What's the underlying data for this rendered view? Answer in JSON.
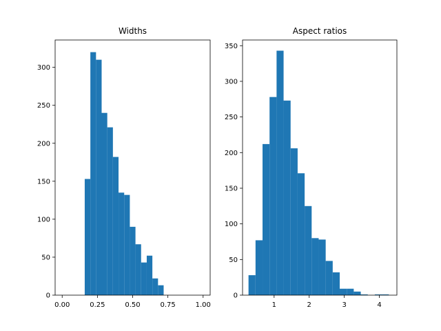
{
  "chart_data": [
    {
      "type": "bar",
      "title": "Widths",
      "bar_color": "#1f77b4",
      "xlim": [
        -0.05,
        1.05
      ],
      "ylim": [
        0,
        336
      ],
      "bin_width": 0.04,
      "bins": [
        {
          "x0": 0.16,
          "value": 153
        },
        {
          "x0": 0.2,
          "value": 320
        },
        {
          "x0": 0.24,
          "value": 310
        },
        {
          "x0": 0.28,
          "value": 240
        },
        {
          "x0": 0.32,
          "value": 221
        },
        {
          "x0": 0.36,
          "value": 182
        },
        {
          "x0": 0.4,
          "value": 135
        },
        {
          "x0": 0.44,
          "value": 132
        },
        {
          "x0": 0.48,
          "value": 90
        },
        {
          "x0": 0.52,
          "value": 67
        },
        {
          "x0": 0.56,
          "value": 43
        },
        {
          "x0": 0.6,
          "value": 52
        },
        {
          "x0": 0.64,
          "value": 22
        },
        {
          "x0": 0.68,
          "value": 13
        }
      ],
      "xticks": [
        0.0,
        0.25,
        0.5,
        0.75,
        1.0
      ],
      "xtick_labels": [
        "0.00",
        "0.25",
        "0.50",
        "0.75",
        "1.00"
      ],
      "yticks": [
        0,
        50,
        100,
        150,
        200,
        250,
        300
      ],
      "ytick_labels": [
        "0",
        "50",
        "100",
        "150",
        "200",
        "250",
        "300"
      ]
    },
    {
      "type": "bar",
      "title": "Aspect ratios",
      "bar_color": "#1f77b4",
      "xlim": [
        0.1,
        4.5
      ],
      "ylim": [
        0,
        358
      ],
      "bin_width": 0.2,
      "bins": [
        {
          "x0": 0.27,
          "value": 28
        },
        {
          "x0": 0.47,
          "value": 77
        },
        {
          "x0": 0.67,
          "value": 212
        },
        {
          "x0": 0.87,
          "value": 278
        },
        {
          "x0": 1.07,
          "value": 343
        },
        {
          "x0": 1.27,
          "value": 273
        },
        {
          "x0": 1.47,
          "value": 206
        },
        {
          "x0": 1.67,
          "value": 171
        },
        {
          "x0": 1.87,
          "value": 125
        },
        {
          "x0": 2.07,
          "value": 80
        },
        {
          "x0": 2.27,
          "value": 78
        },
        {
          "x0": 2.47,
          "value": 48
        },
        {
          "x0": 2.67,
          "value": 32
        },
        {
          "x0": 2.87,
          "value": 9
        },
        {
          "x0": 3.07,
          "value": 9
        },
        {
          "x0": 3.27,
          "value": 5
        },
        {
          "x0": 3.47,
          "value": 1
        },
        {
          "x0": 3.67,
          "value": 0
        },
        {
          "x0": 3.87,
          "value": 1
        },
        {
          "x0": 4.07,
          "value": 1
        }
      ],
      "xticks": [
        1,
        2,
        3,
        4
      ],
      "xtick_labels": [
        "1",
        "2",
        "3",
        "4"
      ],
      "yticks": [
        0,
        50,
        100,
        150,
        200,
        250,
        300,
        350
      ],
      "ytick_labels": [
        "0",
        "50",
        "100",
        "150",
        "200",
        "250",
        "300",
        "350"
      ]
    }
  ]
}
